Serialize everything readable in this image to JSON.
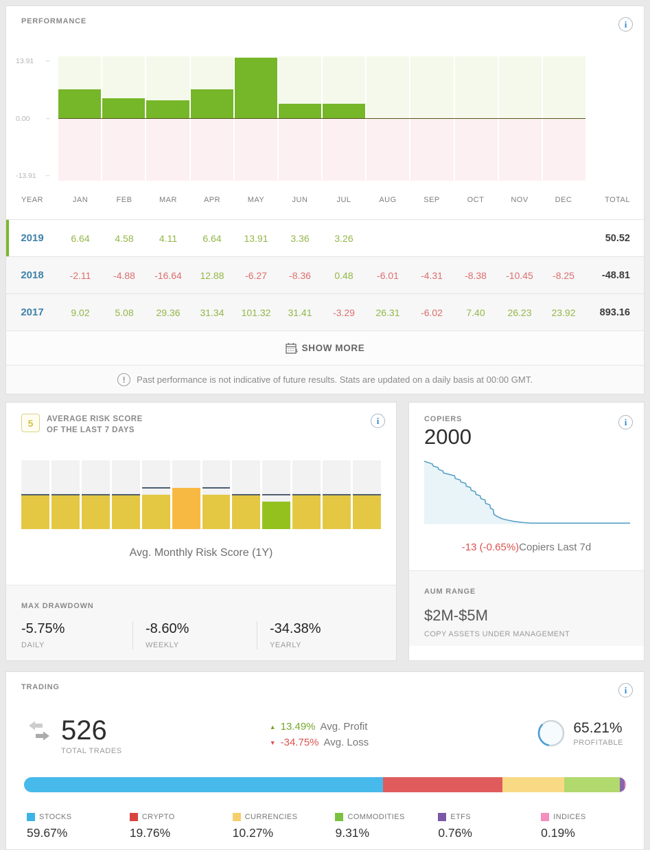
{
  "performance": {
    "title": "PERFORMANCE",
    "columns": [
      "YEAR",
      "JAN",
      "FEB",
      "MAR",
      "APR",
      "MAY",
      "JUN",
      "JUL",
      "AUG",
      "SEP",
      "OCT",
      "NOV",
      "DEC",
      "TOTAL"
    ],
    "rows": [
      {
        "year": "2019",
        "values": [
          6.64,
          4.58,
          4.11,
          6.64,
          13.91,
          3.36,
          3.26,
          null,
          null,
          null,
          null,
          null
        ],
        "total": 50.52,
        "active": true
      },
      {
        "year": "2018",
        "values": [
          -2.11,
          -4.88,
          -16.64,
          12.88,
          -6.27,
          -8.36,
          0.48,
          -6.01,
          -4.31,
          -8.38,
          -10.45,
          -8.25
        ],
        "total": -48.81,
        "active": false
      },
      {
        "year": "2017",
        "values": [
          9.02,
          5.08,
          29.36,
          31.34,
          101.32,
          31.41,
          -3.29,
          26.31,
          -6.02,
          7.4,
          26.23,
          23.92
        ],
        "total": 893.16,
        "active": false
      }
    ],
    "show_more_label": "SHOW MORE",
    "disclaimer": "Past performance is not indicative of future results. Stats are updated on a daily basis at 00:00 GMT."
  },
  "risk": {
    "badge_value": "5",
    "title_line1": "AVERAGE RISK SCORE",
    "title_line2": "OF THE LAST 7 DAYS",
    "caption": "Avg. Monthly Risk Score (1Y)"
  },
  "copiers": {
    "label": "COPIERS",
    "value": "2000",
    "change": "-13 (-0.65%)",
    "change_caption": "Copiers Last 7d"
  },
  "max_drawdown": {
    "title": "MAX DRAWDOWN",
    "stats": [
      {
        "value": "-5.75%",
        "label": "DAILY"
      },
      {
        "value": "-8.60%",
        "label": "WEEKLY"
      },
      {
        "value": "-34.38%",
        "label": "YEARLY"
      }
    ]
  },
  "aum": {
    "title": "AUM RANGE",
    "value": "$2M-$5M",
    "subtitle": "COPY ASSETS UNDER MANAGEMENT"
  },
  "trading": {
    "title": "TRADING",
    "total_trades": "526",
    "total_trades_label": "TOTAL TRADES",
    "avg_profit": {
      "value": "13.49%",
      "label": "Avg. Profit"
    },
    "avg_loss": {
      "value": "-34.75%",
      "label": "Avg. Loss"
    },
    "profitable": {
      "value": "65.21%",
      "label": "PROFITABLE",
      "pct": 65.21
    }
  },
  "chart_data": [
    {
      "id": "monthly-performance",
      "type": "bar",
      "title": "PERFORMANCE",
      "categories": [
        "JAN",
        "FEB",
        "MAR",
        "APR",
        "MAY",
        "JUN",
        "JUL",
        "AUG",
        "SEP",
        "OCT",
        "NOV",
        "DEC"
      ],
      "series": [
        {
          "name": "2019",
          "values": [
            6.64,
            4.58,
            4.11,
            6.64,
            13.91,
            3.36,
            3.26,
            null,
            null,
            null,
            null,
            null
          ],
          "total": 50.52
        },
        {
          "name": "2018",
          "values": [
            -2.11,
            -4.88,
            -16.64,
            12.88,
            -6.27,
            -8.36,
            0.48,
            -6.01,
            -4.31,
            -8.38,
            -10.45,
            -8.25
          ],
          "total": -48.81
        },
        {
          "name": "2017",
          "values": [
            9.02,
            5.08,
            29.36,
            31.34,
            101.32,
            31.41,
            -3.29,
            26.31,
            -6.02,
            7.4,
            26.23,
            23.92
          ],
          "total": 893.16
        }
      ],
      "plotted_series": "2019",
      "y_ticks": [
        13.91,
        0.0,
        -13.91
      ],
      "ylim": [
        -15,
        15
      ],
      "bar_color": "#76b629",
      "bg_positive": "#f4f9eb",
      "bg_negative": "#fdf0f2"
    },
    {
      "id": "avg-monthly-risk-score",
      "type": "bar",
      "title": "Avg. Monthly Risk Score (1Y)",
      "values": [
        5,
        5,
        5,
        5,
        5,
        6,
        5,
        5,
        4,
        5,
        5,
        5
      ],
      "colors": [
        "yellow",
        "yellow",
        "yellow",
        "yellow",
        "yellow",
        "orange",
        "yellow",
        "yellow",
        "green",
        "yellow",
        "yellow",
        "yellow"
      ],
      "markers": [
        5,
        5,
        5,
        5,
        6,
        null,
        6,
        5,
        5,
        5,
        5,
        5
      ],
      "ylim": [
        0,
        10
      ],
      "palette": {
        "yellow": "#e4c844",
        "orange": "#f8b943",
        "green": "#95c11f"
      }
    },
    {
      "id": "copiers-trend",
      "type": "area",
      "title": "Copiers",
      "end_value": 2000,
      "change": -13,
      "change_pct": "-0.65%",
      "line_color": "#5aa2c6",
      "fill_color": "#e9f4f9"
    },
    {
      "id": "asset-allocation",
      "type": "stacked-bar",
      "categories": [
        "STOCKS",
        "CRYPTO",
        "CURRENCIES",
        "COMMODITIES",
        "ETFS",
        "INDICES"
      ],
      "values": [
        59.67,
        19.76,
        10.27,
        9.31,
        0.76,
        0.19
      ],
      "bar_colors": [
        "#47b9ea",
        "#e05c5c",
        "#f8da85",
        "#b2d96e",
        "#8a65ad",
        "#f092c0"
      ],
      "swatch_colors": [
        "#3cb4e5",
        "#d8433f",
        "#f5cf6b",
        "#7ac143",
        "#7b57a5",
        "#f48fc0"
      ]
    }
  ]
}
